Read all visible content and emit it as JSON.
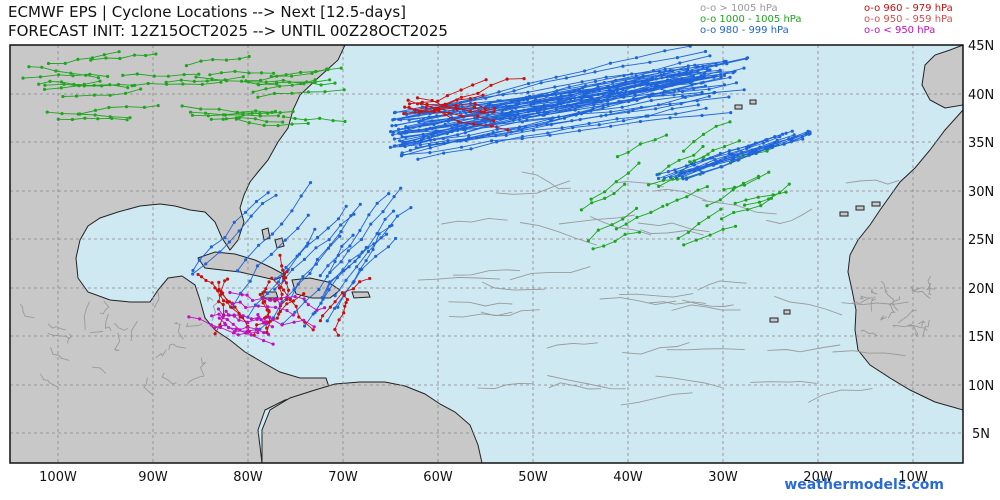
{
  "header": {
    "title": "ECMWF EPS | Cyclone Locations --> Next [12.5-days]",
    "subtitle": "FORECAST INIT: 12Z15OCT2025 --> UNTIL 00Z28OCT2025"
  },
  "legend": {
    "items": [
      {
        "label": "o-o > 1005 hPa",
        "color": "#9a9a9a"
      },
      {
        "label": "o-o 1000 - 1005 hPa",
        "color": "#1fa51f"
      },
      {
        "label": "o-o 980 - 999 hPa",
        "color": "#1f64d8"
      },
      {
        "label": "o-o 960 - 979 hPa",
        "color": "#c81010"
      },
      {
        "label": "o-o 950 - 959 hPa",
        "color": "#d05050"
      },
      {
        "label": "o-o < 950 hPa",
        "color": "#c010c0"
      }
    ]
  },
  "map": {
    "ocean_color": "#cfe9f2",
    "land_color": "#c8c8c8",
    "lon_labels": [
      "100W",
      "90W",
      "80W",
      "70W",
      "60W",
      "50W",
      "40W",
      "30W",
      "20W",
      "10W"
    ],
    "lat_labels": [
      "45N",
      "40N",
      "35N",
      "30N",
      "25N",
      "20N",
      "15N",
      "10N",
      "5N"
    ]
  },
  "credit": "weathermodels.com"
}
